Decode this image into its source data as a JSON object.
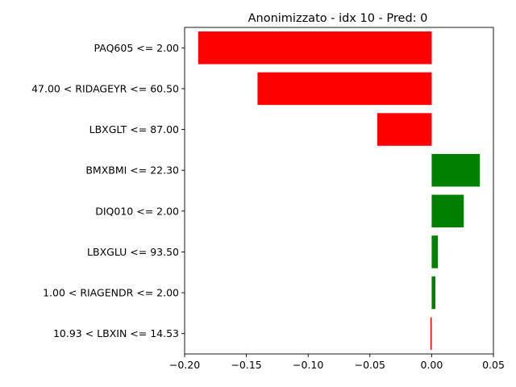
{
  "chart_data": {
    "type": "bar",
    "orientation": "horizontal",
    "title": "Anonimizzato - idx 10 - Pred: 0",
    "xlabel": "",
    "ylabel": "",
    "xlim": [
      -0.2,
      0.05
    ],
    "xticks": [
      -0.2,
      -0.15,
      -0.1,
      -0.05,
      0.0,
      0.05
    ],
    "xtick_labels": [
      "−0.20",
      "−0.15",
      "−0.10",
      "−0.05",
      "0.00",
      "0.05"
    ],
    "grid": false,
    "legend": "none",
    "categories": [
      "PAQ605 <= 2.00",
      "47.00 < RIDAGEYR <= 60.50",
      "LBXGLT <= 87.00",
      "BMXBMI <= 22.30",
      "DIQ010 <= 2.00",
      "LBXGLU <= 93.50",
      "1.00 < RIAGENDR <= 2.00",
      "10.93 < LBXIN <= 14.53"
    ],
    "values": [
      -0.189,
      -0.141,
      -0.044,
      0.039,
      0.026,
      0.005,
      0.003,
      -0.001
    ],
    "colors": {
      "negative": "#ff0000",
      "positive": "#008000"
    }
  }
}
